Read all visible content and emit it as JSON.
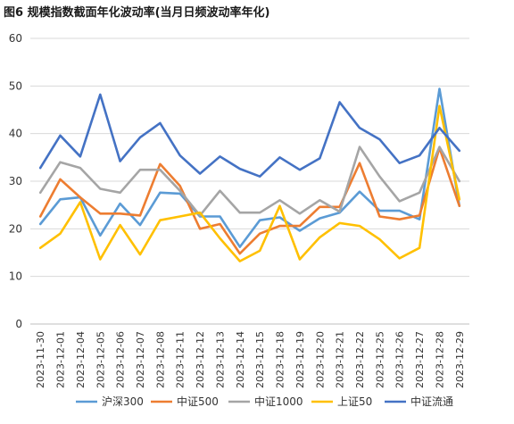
{
  "title": "图6  规模指数截面年化波动率(当月日频波动率年化)",
  "chart_data": {
    "type": "line",
    "title": "图6  规模指数截面年化波动率(当月日频波动率年化)",
    "xlabel": "",
    "ylabel": "",
    "ylim": [
      0,
      60
    ],
    "yticks": [
      0,
      10,
      20,
      30,
      40,
      50,
      60
    ],
    "grid": "horizontal",
    "legend_position": "bottom",
    "categories": [
      "2023-11-30",
      "2023-12-01",
      "2023-12-04",
      "2023-12-05",
      "2023-12-06",
      "2023-12-07",
      "2023-12-08",
      "2023-12-11",
      "2023-12-12",
      "2023-12-13",
      "2023-12-14",
      "2023-12-15",
      "2023-12-18",
      "2023-12-19",
      "2023-12-20",
      "2023-12-21",
      "2023-12-22",
      "2023-12-25",
      "2023-12-26",
      "2023-12-27",
      "2023-12-28",
      "2023-12-29"
    ],
    "series": [
      {
        "name": "沪深300",
        "color": "#5b9bd5",
        "values": [
          21.0,
          26.2,
          26.6,
          18.6,
          25.3,
          20.8,
          27.6,
          27.4,
          22.6,
          22.6,
          16.2,
          21.8,
          22.4,
          19.6,
          22.2,
          23.4,
          27.8,
          23.8,
          23.8,
          22.0,
          49.4,
          24.8
        ]
      },
      {
        "name": "中证500",
        "color": "#ed7d31",
        "values": [
          22.6,
          30.4,
          26.6,
          23.2,
          23.2,
          22.8,
          33.6,
          29.0,
          20.0,
          21.0,
          14.8,
          19.0,
          20.6,
          20.6,
          24.6,
          24.6,
          33.8,
          22.6,
          22.0,
          22.8,
          37.0,
          24.8
        ]
      },
      {
        "name": "中证1000",
        "color": "#a5a5a5",
        "values": [
          27.6,
          34.0,
          32.8,
          28.4,
          27.6,
          32.4,
          32.4,
          28.0,
          22.8,
          28.0,
          23.4,
          23.4,
          26.0,
          23.2,
          26.0,
          23.6,
          37.2,
          31.0,
          25.8,
          27.6,
          37.2,
          30.0
        ]
      },
      {
        "name": "上证50",
        "color": "#ffc000",
        "values": [
          16.0,
          19.0,
          25.6,
          13.6,
          20.8,
          14.6,
          21.8,
          22.6,
          23.4,
          18.0,
          13.2,
          15.4,
          24.8,
          13.6,
          18.2,
          21.2,
          20.6,
          17.8,
          13.8,
          16.0,
          45.8,
          26.2
        ]
      },
      {
        "name": "中证流通",
        "color": "#4472c4",
        "values": [
          32.8,
          39.6,
          35.2,
          48.2,
          34.2,
          39.2,
          42.2,
          35.4,
          31.6,
          35.2,
          32.6,
          31.0,
          35.0,
          32.4,
          34.8,
          46.6,
          41.2,
          38.8,
          33.8,
          35.4,
          41.2,
          36.4
        ]
      }
    ]
  }
}
